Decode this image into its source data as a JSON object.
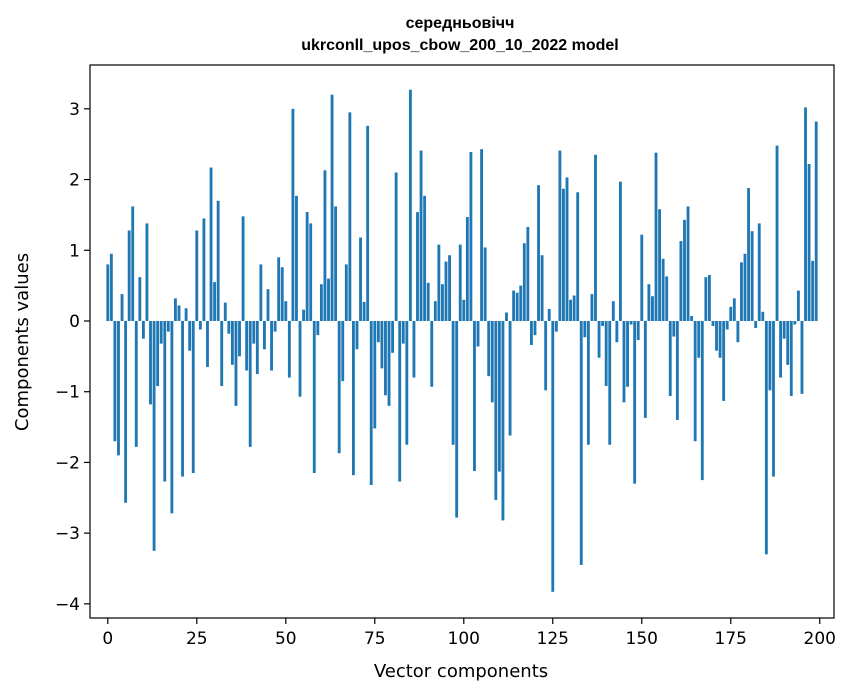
{
  "chart_data": {
    "type": "bar",
    "title": "середньовічч",
    "subtitle": "ukrconll_upos_cbow_200_10_2022 model",
    "xlabel": "Vector components",
    "ylabel": "Components values",
    "xlim": [
      -5,
      204
    ],
    "ylim": [
      -4.2,
      3.62
    ],
    "xticks": [
      0,
      25,
      50,
      75,
      100,
      125,
      150,
      175,
      200
    ],
    "xtick_labels": [
      "0",
      "25",
      "50",
      "75",
      "100",
      "125",
      "150",
      "175",
      "200"
    ],
    "yticks": [
      -4,
      -3,
      -2,
      -1,
      0,
      1,
      2,
      3
    ],
    "ytick_labels": [
      "−4",
      "−3",
      "−2",
      "−1",
      "0",
      "1",
      "2",
      "3"
    ],
    "grid": false,
    "bar_color": "#1f77b4",
    "x": [
      0,
      1,
      2,
      3,
      4,
      5,
      6,
      7,
      8,
      9,
      10,
      11,
      12,
      13,
      14,
      15,
      16,
      17,
      18,
      19,
      20,
      21,
      22,
      23,
      24,
      25,
      26,
      27,
      28,
      29,
      30,
      31,
      32,
      33,
      34,
      35,
      36,
      37,
      38,
      39,
      40,
      41,
      42,
      43,
      44,
      45,
      46,
      47,
      48,
      49,
      50,
      51,
      52,
      53,
      54,
      55,
      56,
      57,
      58,
      59,
      60,
      61,
      62,
      63,
      64,
      65,
      66,
      67,
      68,
      69,
      70,
      71,
      72,
      73,
      74,
      75,
      76,
      77,
      78,
      79,
      80,
      81,
      82,
      83,
      84,
      85,
      86,
      87,
      88,
      89,
      90,
      91,
      92,
      93,
      94,
      95,
      96,
      97,
      98,
      99,
      100,
      101,
      102,
      103,
      104,
      105,
      106,
      107,
      108,
      109,
      110,
      111,
      112,
      113,
      114,
      115,
      116,
      117,
      118,
      119,
      120,
      121,
      122,
      123,
      124,
      125,
      126,
      127,
      128,
      129,
      130,
      131,
      132,
      133,
      134,
      135,
      136,
      137,
      138,
      139,
      140,
      141,
      142,
      143,
      144,
      145,
      146,
      147,
      148,
      149,
      150,
      151,
      152,
      153,
      154,
      155,
      156,
      157,
      158,
      159,
      160,
      161,
      162,
      163,
      164,
      165,
      166,
      167,
      168,
      169,
      170,
      171,
      172,
      173,
      174,
      175,
      176,
      177,
      178,
      179,
      180,
      181,
      182,
      183,
      184,
      185,
      186,
      187,
      188,
      189,
      190,
      191,
      192,
      193,
      194,
      195,
      196,
      197,
      198,
      199
    ],
    "values": [
      0.8,
      0.95,
      -1.7,
      -1.9,
      0.38,
      -2.57,
      1.28,
      1.62,
      -1.78,
      0.62,
      -0.25,
      1.38,
      -1.18,
      -3.25,
      -0.92,
      -0.32,
      -2.27,
      -0.15,
      -2.72,
      0.32,
      0.22,
      -2.2,
      0.18,
      -0.42,
      -2.15,
      1.28,
      -0.12,
      1.45,
      -0.65,
      2.17,
      0.55,
      1.7,
      -0.92,
      0.26,
      -0.18,
      -0.62,
      -1.2,
      -0.5,
      1.48,
      -0.7,
      -1.78,
      -0.32,
      -0.75,
      0.8,
      -0.4,
      0.45,
      -0.7,
      -0.15,
      0.9,
      0.76,
      0.28,
      -0.8,
      3.0,
      1.77,
      -1.07,
      0.16,
      1.54,
      1.38,
      -2.15,
      -0.2,
      0.52,
      2.13,
      0.6,
      3.2,
      1.62,
      -1.87,
      -0.85,
      0.8,
      2.95,
      -2.18,
      -0.4,
      1.18,
      0.27,
      2.76,
      -2.32,
      -1.52,
      -0.3,
      -0.67,
      -1.05,
      -1.2,
      -0.45,
      2.1,
      -2.27,
      -0.32,
      -1.75,
      3.27,
      -0.8,
      1.54,
      2.41,
      1.77,
      0.54,
      -0.93,
      0.28,
      1.08,
      0.52,
      0.84,
      0.93,
      -1.75,
      -2.78,
      1.08,
      0.3,
      1.47,
      2.39,
      -2.12,
      -0.36,
      2.43,
      1.04,
      -0.78,
      -1.15,
      -2.53,
      -2.13,
      -2.82,
      0.12,
      -1.62,
      0.43,
      0.4,
      0.5,
      1.1,
      1.33,
      -0.34,
      -0.2,
      1.92,
      0.93,
      -0.98,
      0.17,
      -3.83,
      -0.15,
      2.41,
      1.87,
      2.03,
      0.3,
      0.36,
      1.82,
      -3.45,
      -0.23,
      -1.75,
      0.38,
      2.35,
      -0.52,
      -0.07,
      -0.92,
      -1.75,
      0.28,
      -0.3,
      1.97,
      -1.15,
      -0.93,
      -0.05,
      -2.3,
      -0.27,
      1.22,
      -1.37,
      0.52,
      0.35,
      2.38,
      1.58,
      0.88,
      0.63,
      -1.06,
      -0.22,
      -1.4,
      1.13,
      1.43,
      1.62,
      0.07,
      -1.7,
      -0.52,
      -2.25,
      0.62,
      0.65,
      -0.07,
      -0.42,
      -0.52,
      -1.13,
      -0.12,
      0.2,
      0.32,
      -0.3,
      0.83,
      0.95,
      1.88,
      1.27,
      -0.1,
      1.38,
      0.13,
      -3.3,
      -0.98,
      -2.2,
      2.48,
      -0.8,
      -0.25,
      -0.62,
      -1.06,
      -0.05,
      0.43,
      -1.03,
      3.02,
      2.22,
      0.85,
      2.82
    ]
  }
}
